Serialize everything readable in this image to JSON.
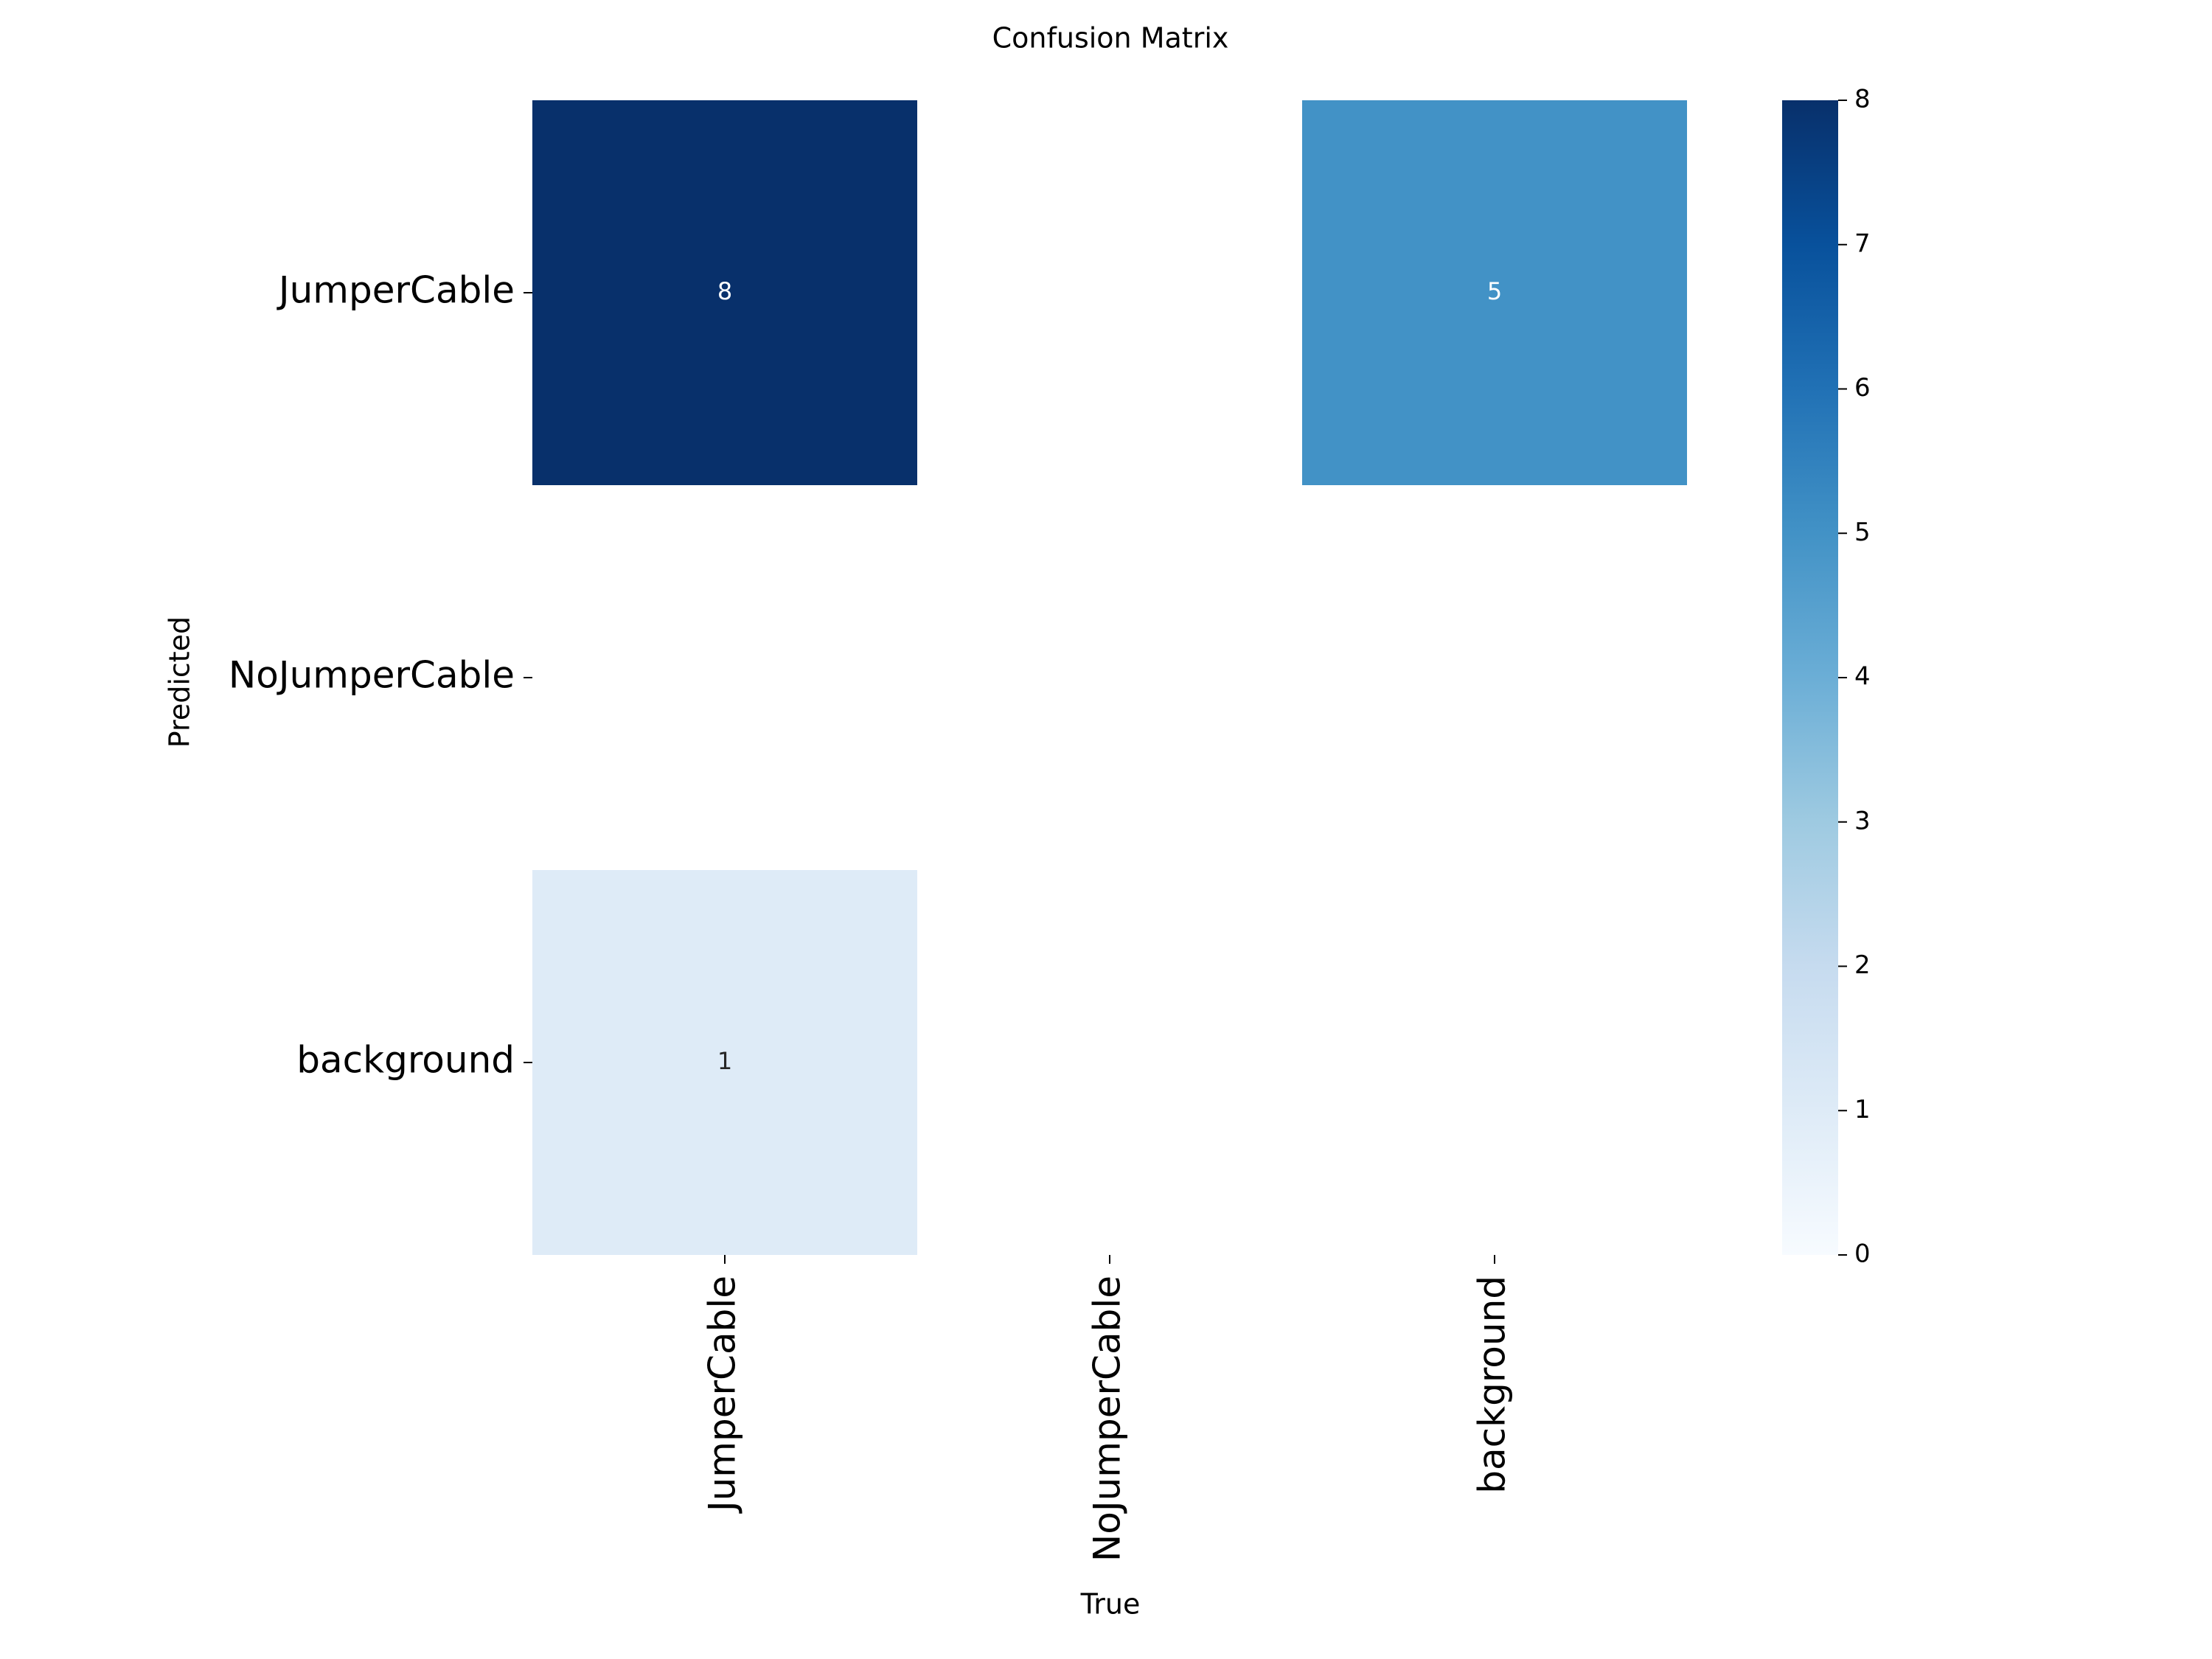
{
  "chart_data": {
    "type": "heatmap",
    "title": "Confusion Matrix",
    "xlabel": "True",
    "ylabel": "Predicted",
    "x_categories": [
      "JumperCable",
      "NoJumperCable",
      "background"
    ],
    "y_categories": [
      "JumperCable",
      "NoJumperCable",
      "background"
    ],
    "matrix": [
      [
        8,
        null,
        5
      ],
      [
        null,
        null,
        null
      ],
      [
        1,
        null,
        null
      ]
    ],
    "colormap": "Blues",
    "colorbar": {
      "min": 0,
      "max": 8,
      "ticks": [
        0,
        1,
        2,
        3,
        4,
        5,
        6,
        7,
        8
      ]
    },
    "colors": {
      "blues_stops": [
        "#f7fbff",
        "#deebf7",
        "#c6dbef",
        "#9ecae1",
        "#6baed6",
        "#4292c6",
        "#2171b5",
        "#08519c",
        "#08306b"
      ],
      "background": "#ffffff",
      "axis": "#000000"
    }
  }
}
